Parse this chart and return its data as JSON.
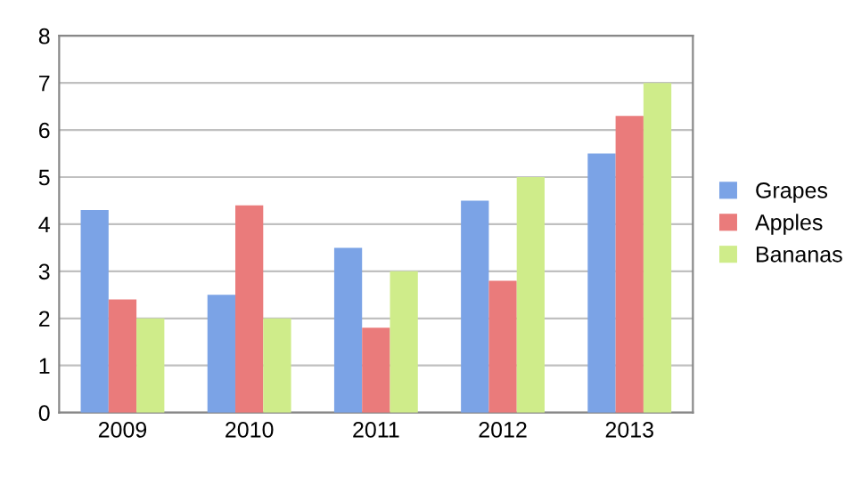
{
  "chart_data": {
    "type": "bar",
    "categories": [
      "2009",
      "2010",
      "2011",
      "2012",
      "2013"
    ],
    "series": [
      {
        "name": "Grapes",
        "color": "#7ba3e6",
        "values": [
          4.3,
          2.5,
          3.5,
          4.5,
          5.5
        ]
      },
      {
        "name": "Apples",
        "color": "#ea7b7b",
        "values": [
          2.4,
          4.4,
          1.8,
          2.8,
          6.3
        ]
      },
      {
        "name": "Bananas",
        "color": "#cfec8a",
        "values": [
          2.0,
          2.0,
          3.0,
          5.0,
          7.0
        ]
      }
    ],
    "ylim": [
      0,
      8
    ],
    "yticks": [
      0,
      1,
      2,
      3,
      4,
      5,
      6,
      7,
      8
    ],
    "grid": "y",
    "legend": "right"
  }
}
